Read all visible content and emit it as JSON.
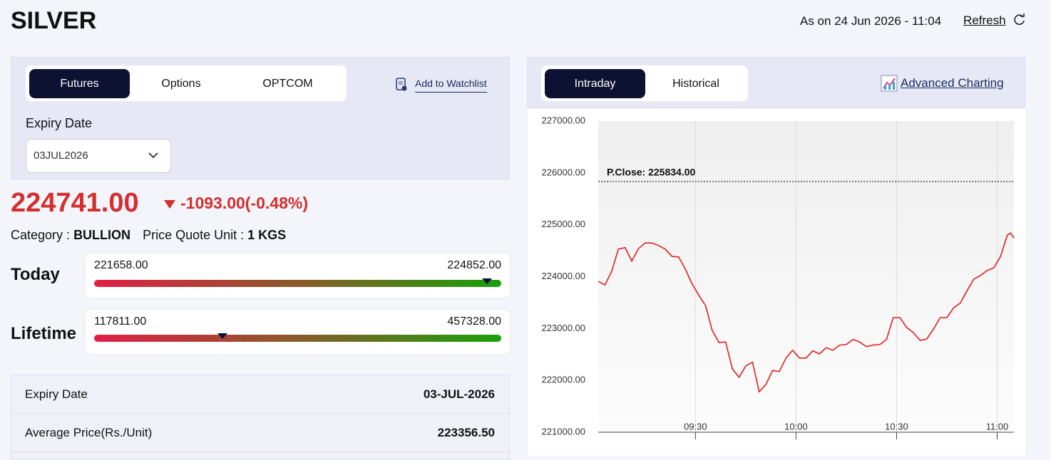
{
  "header": {
    "title": "SILVER",
    "as_on": "As on 24 Jun 2026 - 11:04",
    "refresh": "Refresh"
  },
  "left_panel": {
    "tabs": [
      "Futures",
      "Options",
      "OPTCOM"
    ],
    "watchlist": "Add to Watchlist",
    "expiry_label": "Expiry Date",
    "expiry_select": "03JUL2026"
  },
  "quote": {
    "price": "224741.00",
    "change": "-1093.00(-0.48%)",
    "category_label": "Category :",
    "category": "BULLION",
    "unit_label": "Price Quote Unit :",
    "unit": "1 KGS"
  },
  "ranges": [
    {
      "label": "Today",
      "low": "221658.00",
      "high": "224852.00"
    },
    {
      "label": "Lifetime",
      "low": "117811.00",
      "high": "457328.00"
    }
  ],
  "table": {
    "rows": [
      [
        "Expiry Date",
        "03-JUL-2026"
      ],
      [
        "Average Price(Rs./Unit)",
        "223356.50"
      ]
    ]
  },
  "right_panel": {
    "tabs": [
      "Intraday",
      "Historical"
    ],
    "advanced": "Advanced Charting"
  },
  "chart_data": {
    "type": "line",
    "color": "#e02020",
    "x": [
      541,
      543,
      545,
      547,
      549,
      551,
      553,
      555,
      557,
      559,
      561,
      563,
      565,
      567,
      569,
      571,
      573,
      575,
      577,
      579,
      581,
      583,
      585,
      587,
      589,
      591,
      593,
      595,
      597,
      599,
      601,
      603,
      605,
      607,
      609,
      611,
      613,
      615,
      617,
      619,
      621,
      623,
      625,
      627,
      629,
      631,
      633,
      635,
      637,
      639,
      641,
      643,
      645,
      647,
      649,
      651,
      653,
      655,
      657,
      659,
      661,
      663,
      664,
      665
    ],
    "values": [
      223910,
      223840,
      224100,
      224530,
      224560,
      224300,
      224540,
      224650,
      224650,
      224600,
      224530,
      224390,
      224380,
      224140,
      223860,
      223640,
      223440,
      222960,
      222730,
      222740,
      222220,
      222060,
      222280,
      222350,
      221780,
      221920,
      222190,
      222170,
      222430,
      222580,
      222430,
      222430,
      222570,
      222510,
      222630,
      222580,
      222680,
      222690,
      222790,
      222740,
      222650,
      222680,
      222690,
      222790,
      223210,
      223210,
      223020,
      222920,
      222770,
      222800,
      222990,
      223210,
      223210,
      223400,
      223490,
      223730,
      223950,
      224020,
      224120,
      224170,
      224390,
      224800,
      224840,
      224740
    ],
    "reference_line": {
      "value": 225834,
      "label": "P.Close: 225834.00"
    },
    "xlim": [
      541,
      665
    ],
    "xticks": [
      {
        "value": 570,
        "label": "09:30"
      },
      {
        "value": 600,
        "label": "10:00"
      },
      {
        "value": 630,
        "label": "10:30"
      },
      {
        "value": 660,
        "label": "11:00"
      }
    ],
    "ylim": [
      221000,
      227000
    ],
    "yticks": [
      {
        "value": 221000,
        "label": "221000.00"
      },
      {
        "value": 222000,
        "label": "222000.00"
      },
      {
        "value": 223000,
        "label": "223000.00"
      },
      {
        "value": 224000,
        "label": "224000.00"
      },
      {
        "value": 225000,
        "label": "225000.00"
      },
      {
        "value": 226000,
        "label": "226000.00"
      },
      {
        "value": 227000,
        "label": "227000.00"
      }
    ],
    "grid": true
  }
}
